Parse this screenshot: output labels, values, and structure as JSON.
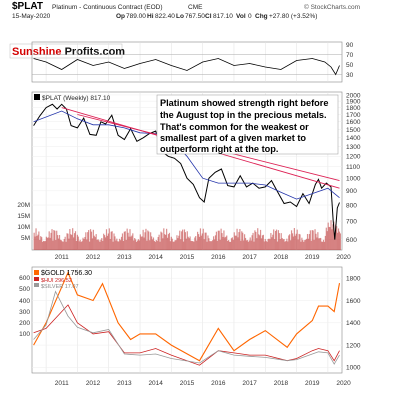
{
  "header": {
    "symbol": "$PLAT",
    "name": "Platinum - Continuous Contract (EOD)",
    "exchange": "CME",
    "date": "15-May-2020",
    "watermark": "© StockCharts.com",
    "quote": {
      "open": "789.00",
      "high": "822.40",
      "low": "767.50",
      "close": "817.10",
      "volume": "0",
      "change": "+27.80 (+3.52%)"
    }
  },
  "brand": {
    "part1": "Sunshine",
    "part2": " Profits.com"
  },
  "colors": {
    "price": "#000000",
    "up": "#000000",
    "down": "#cc0000",
    "ma": "#2233aa",
    "trend": "#dd2255",
    "gold": "#ff6600",
    "hui": "#cc2222",
    "silver": "#999999",
    "volume": "#bb3333"
  },
  "annotation": {
    "lines": [
      "Platinum showed strength right before",
      "the August top in the precious metals.",
      "That's common for the weakest or",
      "smallest part of a given market to",
      "outperform right at the top."
    ]
  },
  "chart_data": [
    {
      "type": "line",
      "panel": "indicator",
      "y_ticks": [
        90,
        70,
        50,
        30
      ],
      "x": [
        2010.6,
        2011.0,
        2011.5,
        2012.0,
        2012.5,
        2013.0,
        2013.5,
        2014.0,
        2014.5,
        2015.0,
        2015.5,
        2016.0,
        2016.5,
        2017.0,
        2017.5,
        2018.0,
        2018.5,
        2019.0,
        2019.5,
        2019.9,
        2020.1,
        2020.25,
        2020.37
      ],
      "values": [
        62,
        55,
        40,
        60,
        48,
        55,
        42,
        52,
        60,
        48,
        38,
        55,
        62,
        48,
        52,
        45,
        40,
        58,
        62,
        55,
        45,
        30,
        48
      ],
      "ylim": [
        15,
        95
      ]
    },
    {
      "type": "line",
      "panel": "price",
      "legend": "$PLAT (Weekly) 817.10",
      "series": [
        {
          "name": "$PLAT (Weekly)",
          "x": [
            2010.6,
            2010.8,
            2011.0,
            2011.2,
            2011.35,
            2011.5,
            2011.65,
            2011.8,
            2012.0,
            2012.2,
            2012.4,
            2012.6,
            2012.75,
            2012.9,
            2013.1,
            2013.3,
            2013.5,
            2013.7,
            2013.9,
            2014.1,
            2014.3,
            2014.5,
            2014.7,
            2014.9,
            2015.1,
            2015.3,
            2015.5,
            2015.7,
            2015.9,
            2016.05,
            2016.2,
            2016.4,
            2016.6,
            2016.8,
            2017.0,
            2017.2,
            2017.4,
            2017.6,
            2017.8,
            2018.0,
            2018.2,
            2018.4,
            2018.6,
            2018.8,
            2019.0,
            2019.2,
            2019.4,
            2019.6,
            2019.7,
            2019.8,
            2019.95,
            2020.1,
            2020.17,
            2020.22,
            2020.3,
            2020.37
          ],
          "values": [
            1550,
            1680,
            1800,
            1850,
            1780,
            1850,
            1780,
            1550,
            1520,
            1650,
            1440,
            1430,
            1600,
            1570,
            1690,
            1430,
            1380,
            1510,
            1360,
            1400,
            1450,
            1480,
            1250,
            1200,
            1180,
            1130,
            1000,
            950,
            850,
            820,
            1000,
            1050,
            1080,
            940,
            930,
            1020,
            930,
            960,
            920,
            930,
            980,
            890,
            810,
            820,
            790,
            880,
            810,
            950,
            990,
            920,
            960,
            930,
            700,
            600,
            780,
            817
          ]
        },
        {
          "name": "moving-average",
          "x": [
            2010.6,
            2011.5,
            2012.0,
            2012.5,
            2013.0,
            2013.5,
            2014.0,
            2014.5,
            2015.0,
            2015.5,
            2016.0,
            2016.5,
            2017.0,
            2017.5,
            2018.0,
            2018.5,
            2019.0,
            2019.5,
            2020.0,
            2020.37
          ],
          "values": [
            1600,
            1750,
            1640,
            1560,
            1560,
            1520,
            1460,
            1450,
            1380,
            1200,
            1000,
            960,
            960,
            960,
            945,
            890,
            840,
            880,
            920,
            850
          ]
        },
        {
          "name": "trend-line-1",
          "x": [
            2012.0,
            2020.37
          ],
          "values": [
            1700,
            980
          ]
        },
        {
          "name": "trend-line-2",
          "x": [
            2011.5,
            2020.37
          ],
          "values": [
            1800,
            920
          ]
        }
      ],
      "y_ticks": [
        2000,
        1900,
        1800,
        1700,
        1600,
        1500,
        1400,
        1300,
        1200,
        1100,
        1000,
        900,
        800,
        700,
        600
      ],
      "volume_ticks": [
        "20M",
        "15M",
        "10M",
        "5M"
      ],
      "ylim": [
        550,
        2050
      ]
    },
    {
      "type": "line",
      "panel": "comparison",
      "series": [
        {
          "name": "$GOLD 1756.30",
          "x": [
            2010.6,
            2011.0,
            2011.7,
            2012.0,
            2012.5,
            2012.8,
            2013.3,
            2013.7,
            2014.0,
            2014.5,
            2015.0,
            2015.9,
            2016.5,
            2017.0,
            2017.5,
            2018.0,
            2018.7,
            2019.0,
            2019.5,
            2019.7,
            2020.0,
            2020.2,
            2020.37
          ],
          "values": [
            1200,
            1400,
            1850,
            1650,
            1600,
            1750,
            1400,
            1250,
            1300,
            1300,
            1200,
            1060,
            1350,
            1150,
            1250,
            1330,
            1180,
            1300,
            1420,
            1550,
            1550,
            1500,
            1756
          ]
        },
        {
          "name": "$HUI 296.52",
          "x": [
            2010.6,
            2011.0,
            2011.7,
            2012.0,
            2012.5,
            2013.0,
            2013.5,
            2014.0,
            2014.5,
            2015.0,
            2015.9,
            2016.5,
            2017.0,
            2017.5,
            2018.0,
            2018.7,
            2019.0,
            2019.5,
            2019.7,
            2020.0,
            2020.2,
            2020.37
          ],
          "values": [
            1310,
            1350,
            1560,
            1400,
            1300,
            1320,
            1130,
            1130,
            1170,
            1110,
            1020,
            1150,
            1130,
            1110,
            1110,
            1060,
            1080,
            1150,
            1170,
            1150,
            1060,
            1150
          ]
        },
        {
          "name": "$SILVER 17.07",
          "x": [
            2010.6,
            2011.0,
            2011.3,
            2011.7,
            2012.0,
            2012.5,
            2013.0,
            2013.5,
            2014.0,
            2014.5,
            2015.0,
            2015.9,
            2016.5,
            2017.0,
            2017.5,
            2018.0,
            2018.7,
            2019.0,
            2019.5,
            2019.7,
            2020.0,
            2020.2,
            2020.37
          ],
          "values": [
            1250,
            1380,
            1680,
            1460,
            1360,
            1310,
            1340,
            1120,
            1110,
            1120,
            1080,
            1040,
            1150,
            1110,
            1100,
            1090,
            1060,
            1070,
            1120,
            1140,
            1130,
            1030,
            1110
          ]
        }
      ],
      "y_ticks_left": [
        600,
        500,
        400,
        300,
        200,
        100
      ],
      "y_ticks_right": [
        1800,
        1600,
        1400,
        1200,
        1000
      ],
      "ylim": [
        950,
        1900
      ]
    }
  ],
  "x_axis": {
    "years": [
      "2011",
      "2012",
      "2013",
      "2014",
      "2015",
      "2016",
      "2017",
      "2018",
      "2019",
      "2020"
    ]
  }
}
